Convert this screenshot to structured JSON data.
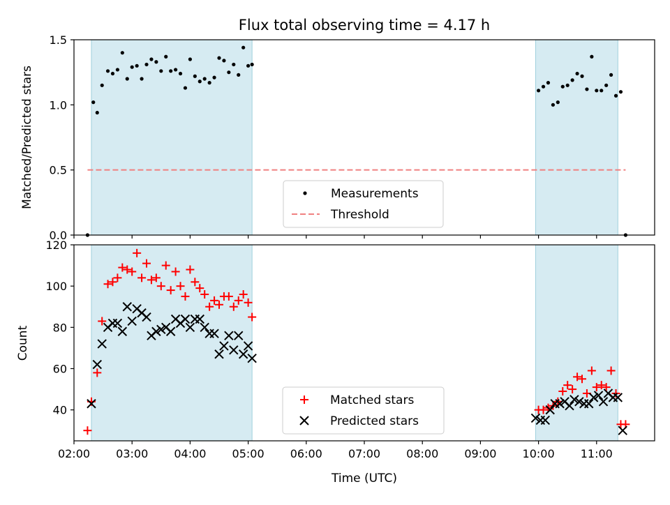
{
  "chart_data": [
    {
      "type": "scatter",
      "title": "Flux total observing time = 4.17 h",
      "ylabel": "Matched/Predicted stars",
      "xlabel": "",
      "xlim": [
        "02:00",
        "12:00"
      ],
      "ylim": [
        0,
        1.5
      ],
      "yticks": [
        "0.0",
        "0.5",
        "1.0",
        "1.5"
      ],
      "shaded_intervals": [
        [
          "02:18",
          "05:04"
        ],
        [
          "09:57",
          "11:22"
        ]
      ],
      "threshold": {
        "y": 0.5,
        "x_start": "02:14",
        "x_end": "11:30",
        "color": "#f08080"
      },
      "legend": {
        "position": "lower-center",
        "entries": [
          "Measurements",
          "Threshold"
        ]
      },
      "series": [
        {
          "name": "Measurements",
          "color": "#000000",
          "x": [
            "02:14",
            "02:20",
            "02:24",
            "02:29",
            "02:35",
            "02:40",
            "02:45",
            "02:50",
            "02:55",
            "03:00",
            "03:05",
            "03:10",
            "03:15",
            "03:20",
            "03:25",
            "03:30",
            "03:35",
            "03:40",
            "03:45",
            "03:50",
            "03:55",
            "04:00",
            "04:05",
            "04:10",
            "04:15",
            "04:20",
            "04:25",
            "04:30",
            "04:35",
            "04:40",
            "04:45",
            "04:50",
            "04:55",
            "05:00",
            "05:04",
            "10:00",
            "10:05",
            "10:10",
            "10:15",
            "10:20",
            "10:25",
            "10:30",
            "10:35",
            "10:40",
            "10:45",
            "10:50",
            "10:55",
            "11:00",
            "11:05",
            "11:10",
            "11:15",
            "11:20",
            "11:25",
            "11:30"
          ],
          "y": [
            0.0,
            1.02,
            0.94,
            1.15,
            1.26,
            1.24,
            1.27,
            1.4,
            1.2,
            1.29,
            1.3,
            1.2,
            1.31,
            1.35,
            1.33,
            1.26,
            1.37,
            1.26,
            1.27,
            1.24,
            1.13,
            1.35,
            1.22,
            1.18,
            1.2,
            1.17,
            1.21,
            1.36,
            1.34,
            1.25,
            1.31,
            1.23,
            1.44,
            1.3,
            1.31,
            1.11,
            1.14,
            1.17,
            1.0,
            1.02,
            1.14,
            1.15,
            1.19,
            1.24,
            1.22,
            1.12,
            1.37,
            1.11,
            1.11,
            1.15,
            1.23,
            1.07,
            1.1,
            0.0
          ]
        }
      ]
    },
    {
      "type": "scatter",
      "xlabel": "Time (UTC)",
      "ylabel": "Count",
      "xlim": [
        "02:00",
        "12:00"
      ],
      "ylim": [
        25,
        120
      ],
      "yticks": [
        "40",
        "60",
        "80",
        "100",
        "120"
      ],
      "xticks": [
        "02:00",
        "03:00",
        "04:00",
        "05:00",
        "06:00",
        "07:00",
        "08:00",
        "09:00",
        "10:00",
        "11:00"
      ],
      "shaded_intervals": [
        [
          "02:18",
          "05:04"
        ],
        [
          "09:57",
          "11:22"
        ]
      ],
      "legend": {
        "position": "lower-center",
        "entries": [
          "Matched stars",
          "Predicted stars"
        ]
      },
      "series": [
        {
          "name": "Matched stars",
          "color": "#ff0000",
          "marker": "plus",
          "x": [
            "02:14",
            "02:18",
            "02:24",
            "02:29",
            "02:35",
            "02:40",
            "02:45",
            "02:50",
            "02:55",
            "03:00",
            "03:05",
            "03:10",
            "03:15",
            "03:20",
            "03:25",
            "03:30",
            "03:35",
            "03:40",
            "03:45",
            "03:50",
            "03:55",
            "04:00",
            "04:05",
            "04:10",
            "04:15",
            "04:20",
            "04:25",
            "04:30",
            "04:35",
            "04:40",
            "04:45",
            "04:50",
            "04:55",
            "05:00",
            "05:04",
            "10:00",
            "10:05",
            "10:10",
            "10:15",
            "10:20",
            "10:25",
            "10:30",
            "10:35",
            "10:40",
            "10:45",
            "10:50",
            "10:55",
            "11:00",
            "11:05",
            "11:10",
            "11:15",
            "11:20",
            "11:25",
            "11:30"
          ],
          "y": [
            30,
            44,
            58,
            83,
            101,
            102,
            104,
            109,
            108,
            107,
            116,
            104,
            111,
            103,
            104,
            100,
            110,
            98,
            107,
            100,
            95,
            108,
            102,
            99,
            96,
            90,
            93,
            91,
            95,
            95,
            90,
            93,
            96,
            92,
            85,
            40,
            40,
            41,
            42,
            44,
            49,
            52,
            50,
            56,
            55,
            48,
            59,
            51,
            52,
            51,
            59,
            48,
            33,
            33
          ]
        },
        {
          "name": "Predicted stars",
          "color": "#000000",
          "marker": "x",
          "x": [
            "02:18",
            "02:24",
            "02:29",
            "02:35",
            "02:40",
            "02:45",
            "02:50",
            "02:55",
            "03:00",
            "03:05",
            "03:10",
            "03:15",
            "03:20",
            "03:25",
            "03:30",
            "03:35",
            "03:40",
            "03:45",
            "03:50",
            "03:55",
            "04:00",
            "04:05",
            "04:10",
            "04:15",
            "04:20",
            "04:25",
            "04:30",
            "04:35",
            "04:40",
            "04:45",
            "04:50",
            "04:55",
            "05:00",
            "05:04",
            "09:57",
            "10:02",
            "10:07",
            "10:12",
            "10:17",
            "10:22",
            "10:27",
            "10:32",
            "10:37",
            "10:42",
            "10:47",
            "10:52",
            "10:57",
            "11:02",
            "11:07",
            "11:12",
            "11:17",
            "11:22",
            "11:27"
          ],
          "y": [
            43,
            62,
            72,
            80,
            82,
            82,
            78,
            90,
            83,
            89,
            87,
            85,
            76,
            78,
            79,
            80,
            78,
            84,
            82,
            84,
            80,
            84,
            84,
            80,
            77,
            77,
            67,
            71,
            76,
            69,
            76,
            67,
            71,
            65,
            36,
            35,
            35,
            40,
            43,
            43,
            44,
            42,
            45,
            44,
            43,
            43,
            46,
            47,
            44,
            48,
            46,
            46,
            30
          ]
        }
      ]
    }
  ]
}
